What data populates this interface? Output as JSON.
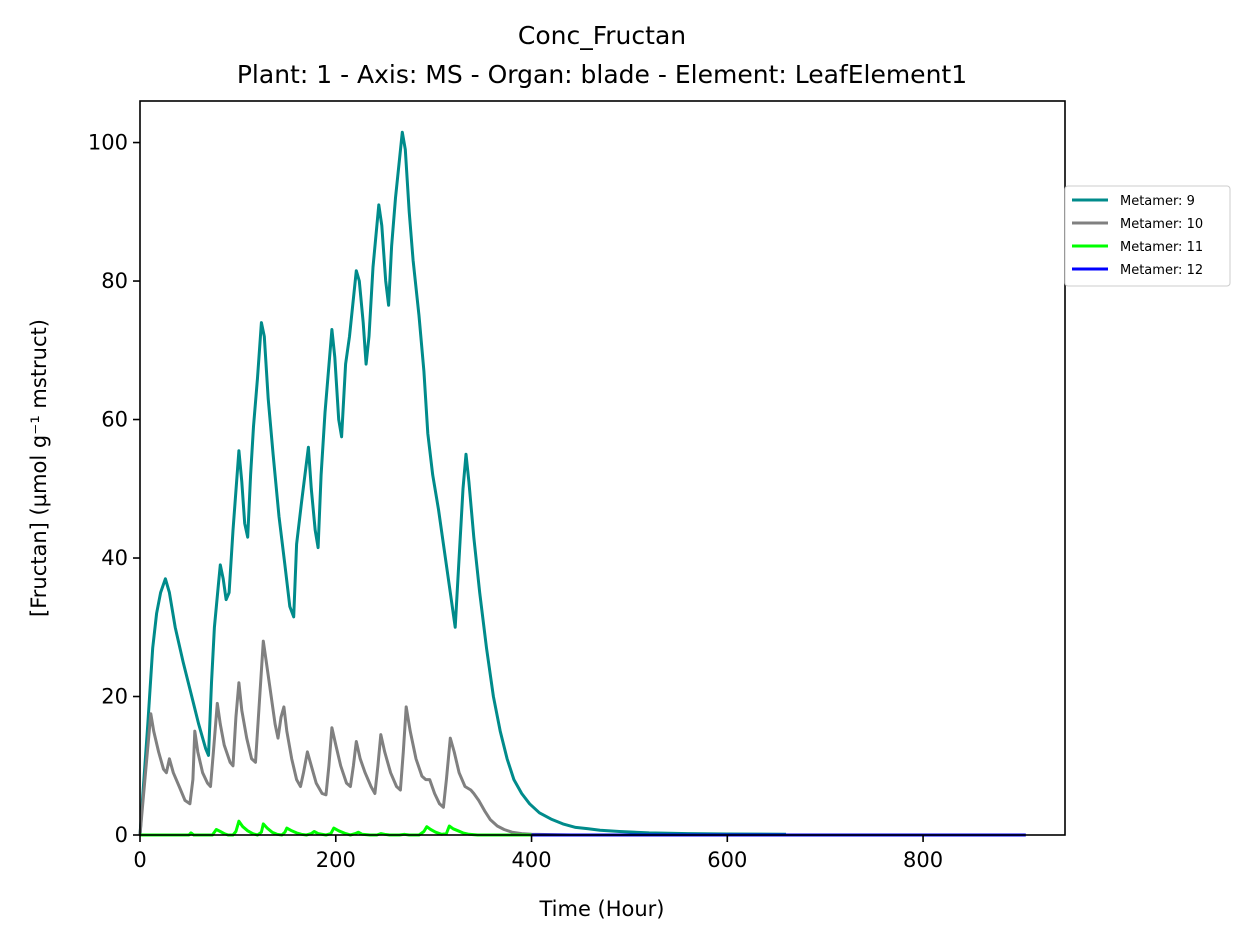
{
  "chart_data": {
    "type": "line",
    "title": "Conc_Fructan",
    "subtitle": "Plant: 1 - Axis: MS - Organ: blade - Element: LeafElement1",
    "xlabel": "Time (Hour)",
    "ylabel": "[Fructan] (µmol g⁻¹ mstruct)",
    "xlim": [
      0,
      945
    ],
    "ylim": [
      0,
      106
    ],
    "xticks": [
      0,
      200,
      400,
      600,
      800
    ],
    "yticks": [
      0,
      20,
      40,
      60,
      80,
      100
    ],
    "grid": false,
    "legend_position": "right, outside plot",
    "series": [
      {
        "name": "Metamer: 9",
        "color": "#008b8b",
        "points": [
          [
            0,
            0
          ],
          [
            8,
            16
          ],
          [
            13,
            27
          ],
          [
            17,
            32
          ],
          [
            21,
            35
          ],
          [
            26,
            37
          ],
          [
            30,
            35
          ],
          [
            36,
            30
          ],
          [
            44,
            25
          ],
          [
            52,
            20.5
          ],
          [
            60,
            16
          ],
          [
            67,
            12.5
          ],
          [
            70,
            11.5
          ],
          [
            73,
            22
          ],
          [
            76,
            30
          ],
          [
            80,
            36
          ],
          [
            82,
            39
          ],
          [
            85,
            37
          ],
          [
            88,
            34
          ],
          [
            91,
            35
          ],
          [
            95,
            44
          ],
          [
            101,
            55.5
          ],
          [
            104,
            51
          ],
          [
            107,
            45
          ],
          [
            110,
            43
          ],
          [
            113,
            52
          ],
          [
            116,
            59
          ],
          [
            120,
            66
          ],
          [
            124,
            74
          ],
          [
            127,
            72
          ],
          [
            131,
            63
          ],
          [
            136,
            55
          ],
          [
            142,
            46
          ],
          [
            148,
            39
          ],
          [
            153,
            33
          ],
          [
            157,
            31.5
          ],
          [
            160,
            42
          ],
          [
            165,
            48
          ],
          [
            172,
            56
          ],
          [
            175,
            50
          ],
          [
            179,
            44
          ],
          [
            182,
            41.5
          ],
          [
            185,
            52
          ],
          [
            189,
            61
          ],
          [
            196,
            73
          ],
          [
            199,
            69
          ],
          [
            203,
            60
          ],
          [
            206,
            57.5
          ],
          [
            210,
            68
          ],
          [
            214,
            72
          ],
          [
            221,
            81.5
          ],
          [
            224,
            80
          ],
          [
            228,
            74
          ],
          [
            231,
            68
          ],
          [
            234,
            72
          ],
          [
            238,
            82
          ],
          [
            244,
            91
          ],
          [
            247,
            88
          ],
          [
            251,
            80
          ],
          [
            254,
            76.5
          ],
          [
            257,
            85
          ],
          [
            261,
            92
          ],
          [
            268,
            101.5
          ],
          [
            271,
            99
          ],
          [
            275,
            90
          ],
          [
            279,
            83
          ],
          [
            285,
            75
          ],
          [
            290,
            67
          ],
          [
            294,
            58
          ],
          [
            299,
            52
          ],
          [
            305,
            47
          ],
          [
            311,
            41
          ],
          [
            317,
            35
          ],
          [
            322,
            30
          ],
          [
            326,
            40
          ],
          [
            330,
            50
          ],
          [
            333,
            55
          ],
          [
            336,
            51
          ],
          [
            341,
            43
          ],
          [
            347,
            35
          ],
          [
            354,
            27
          ],
          [
            361,
            20
          ],
          [
            368,
            15
          ],
          [
            375,
            11
          ],
          [
            382,
            8
          ],
          [
            390,
            6
          ],
          [
            398,
            4.5
          ],
          [
            408,
            3.2
          ],
          [
            420,
            2.3
          ],
          [
            432,
            1.6
          ],
          [
            445,
            1.1
          ],
          [
            458,
            0.9
          ],
          [
            470,
            0.7
          ],
          [
            490,
            0.5
          ],
          [
            520,
            0.3
          ],
          [
            560,
            0.2
          ],
          [
            600,
            0.15
          ],
          [
            660,
            0.1
          ]
        ]
      },
      {
        "name": "Metamer: 10",
        "color": "#808080",
        "points": [
          [
            0,
            0
          ],
          [
            5,
            8
          ],
          [
            11,
            17.5
          ],
          [
            14,
            15
          ],
          [
            19,
            12
          ],
          [
            24,
            9.5
          ],
          [
            27,
            9
          ],
          [
            30,
            11
          ],
          [
            34,
            9
          ],
          [
            40,
            7
          ],
          [
            46,
            5
          ],
          [
            51,
            4.5
          ],
          [
            54,
            8
          ],
          [
            56,
            15
          ],
          [
            59,
            12
          ],
          [
            64,
            9
          ],
          [
            69,
            7.5
          ],
          [
            72,
            7
          ],
          [
            75,
            12
          ],
          [
            79,
            19
          ],
          [
            82,
            16
          ],
          [
            86,
            13
          ],
          [
            92,
            10.5
          ],
          [
            95,
            10
          ],
          [
            98,
            17
          ],
          [
            101,
            22
          ],
          [
            104,
            18
          ],
          [
            109,
            14
          ],
          [
            114,
            11
          ],
          [
            118,
            10.5
          ],
          [
            121,
            17
          ],
          [
            126,
            28
          ],
          [
            129,
            25
          ],
          [
            134,
            20
          ],
          [
            138,
            16
          ],
          [
            141,
            14
          ],
          [
            144,
            17
          ],
          [
            147,
            18.5
          ],
          [
            150,
            15
          ],
          [
            155,
            11
          ],
          [
            160,
            8
          ],
          [
            164,
            7
          ],
          [
            167,
            9
          ],
          [
            171,
            12
          ],
          [
            175,
            10
          ],
          [
            180,
            7.5
          ],
          [
            186,
            6
          ],
          [
            190,
            5.8
          ],
          [
            193,
            10
          ],
          [
            196,
            15.5
          ],
          [
            200,
            13
          ],
          [
            205,
            10
          ],
          [
            211,
            7.5
          ],
          [
            215,
            7
          ],
          [
            218,
            10
          ],
          [
            221,
            13.5
          ],
          [
            225,
            11
          ],
          [
            230,
            9
          ],
          [
            236,
            7
          ],
          [
            240,
            6
          ],
          [
            243,
            10
          ],
          [
            246,
            14.5
          ],
          [
            250,
            12
          ],
          [
            256,
            9
          ],
          [
            262,
            7
          ],
          [
            266,
            6.5
          ],
          [
            269,
            12
          ],
          [
            272,
            18.5
          ],
          [
            276,
            15
          ],
          [
            282,
            11
          ],
          [
            288,
            8.5
          ],
          [
            292,
            8
          ],
          [
            296,
            8
          ],
          [
            301,
            6
          ],
          [
            306,
            4.5
          ],
          [
            310,
            4
          ],
          [
            313,
            8
          ],
          [
            317,
            14
          ],
          [
            321,
            12
          ],
          [
            326,
            9
          ],
          [
            332,
            7
          ],
          [
            338,
            6.5
          ],
          [
            341,
            6
          ],
          [
            346,
            5
          ],
          [
            352,
            3.5
          ],
          [
            358,
            2.2
          ],
          [
            365,
            1.3
          ],
          [
            372,
            0.8
          ],
          [
            380,
            0.4
          ],
          [
            390,
            0.2
          ],
          [
            400,
            0.1
          ],
          [
            440,
            0
          ],
          [
            500,
            0
          ]
        ]
      },
      {
        "name": "Metamer: 11",
        "color": "#00ff00",
        "points": [
          [
            0,
            0
          ],
          [
            50,
            0
          ],
          [
            52,
            0.3
          ],
          [
            55,
            0
          ],
          [
            70,
            0
          ],
          [
            74,
            0
          ],
          [
            78,
            0.8
          ],
          [
            82,
            0.5
          ],
          [
            86,
            0.2
          ],
          [
            90,
            0
          ],
          [
            95,
            0
          ],
          [
            98,
            0.5
          ],
          [
            101,
            2
          ],
          [
            105,
            1.2
          ],
          [
            110,
            0.6
          ],
          [
            115,
            0.2
          ],
          [
            120,
            0
          ],
          [
            124,
            0.4
          ],
          [
            126,
            1.6
          ],
          [
            130,
            1
          ],
          [
            135,
            0.4
          ],
          [
            140,
            0.1
          ],
          [
            145,
            0
          ],
          [
            148,
            0.4
          ],
          [
            150,
            1
          ],
          [
            155,
            0.6
          ],
          [
            160,
            0.3
          ],
          [
            165,
            0.1
          ],
          [
            170,
            0
          ],
          [
            175,
            0.2
          ],
          [
            178,
            0.5
          ],
          [
            182,
            0.2
          ],
          [
            190,
            0
          ],
          [
            195,
            0.2
          ],
          [
            198,
            1
          ],
          [
            203,
            0.6
          ],
          [
            210,
            0.2
          ],
          [
            215,
            0
          ],
          [
            220,
            0.2
          ],
          [
            223,
            0.4
          ],
          [
            227,
            0.1
          ],
          [
            235,
            0
          ],
          [
            242,
            0
          ],
          [
            246,
            0.2
          ],
          [
            250,
            0.1
          ],
          [
            255,
            0
          ],
          [
            265,
            0
          ],
          [
            270,
            0.1
          ],
          [
            275,
            0
          ],
          [
            285,
            0
          ],
          [
            290,
            0.5
          ],
          [
            293,
            1.2
          ],
          [
            297,
            0.8
          ],
          [
            302,
            0.4
          ],
          [
            308,
            0.1
          ],
          [
            313,
            0.2
          ],
          [
            316,
            1.3
          ],
          [
            320,
            0.9
          ],
          [
            325,
            0.6
          ],
          [
            330,
            0.3
          ],
          [
            336,
            0.1
          ],
          [
            345,
            0
          ],
          [
            500,
            0
          ],
          [
            900,
            0
          ]
        ]
      },
      {
        "name": "Metamer: 12",
        "color": "#0000ff",
        "points": [
          [
            400,
            0
          ],
          [
            500,
            0
          ],
          [
            600,
            0
          ],
          [
            700,
            0
          ],
          [
            800,
            0
          ],
          [
            905,
            0
          ]
        ]
      }
    ]
  }
}
